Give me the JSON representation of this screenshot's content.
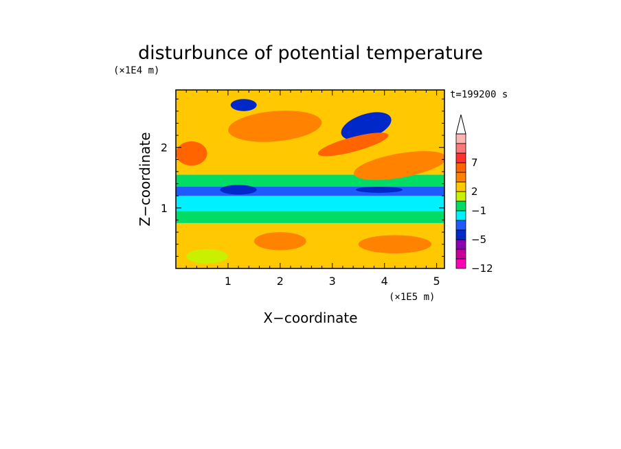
{
  "chart_data": {
    "type": "heatmap",
    "title": "disturbunce of potential temperature",
    "xlabel": "X−coordinate",
    "ylabel": "Z−coordinate",
    "x_unit": "(×1E5 m)",
    "y_unit": "(×1E4 m)",
    "time_label": "t=199200 s",
    "x_ticks": [
      "1",
      "2",
      "3",
      "4",
      "5"
    ],
    "y_ticks": [
      "1",
      "2"
    ],
    "xlim": [
      0,
      5.15
    ],
    "ylim": [
      0,
      2.95
    ],
    "colorbar": {
      "colors": [
        "#ff00b4",
        "#c8009a",
        "#8c00b4",
        "#0028c8",
        "#1e5aff",
        "#00f0ff",
        "#00dc64",
        "#c8f000",
        "#ffc800",
        "#ff8200",
        "#ff6400",
        "#ff3232",
        "#ff7878",
        "#ffb4b4"
      ],
      "labels": [
        "−12",
        "−5",
        "−1",
        "2",
        "7"
      ],
      "label_levels": [
        0,
        3,
        6,
        8,
        11
      ],
      "extend": "max"
    },
    "bands": [
      {
        "zmin": 0.0,
        "zmax": 0.55,
        "level": 8,
        "note": "yellow lower layer"
      },
      {
        "zmin": 0.55,
        "zmax": 0.75,
        "level": 8
      },
      {
        "zmin": 0.75,
        "zmax": 0.95,
        "level": 6
      },
      {
        "zmin": 0.95,
        "zmax": 1.2,
        "level": 5
      },
      {
        "zmin": 1.2,
        "zmax": 1.35,
        "level": 4
      },
      {
        "zmin": 1.35,
        "zmax": 1.55,
        "level": 6
      },
      {
        "zmin": 1.55,
        "zmax": 2.95,
        "level": 8
      }
    ],
    "features": [
      {
        "x": 3.65,
        "z": 2.35,
        "rx": 0.5,
        "rz": 0.2,
        "level": 3,
        "tilt": -18
      },
      {
        "x": 1.3,
        "z": 2.7,
        "rx": 0.25,
        "rz": 0.1,
        "level": 3,
        "tilt": 0
      },
      {
        "x": 1.9,
        "z": 2.35,
        "rx": 0.9,
        "rz": 0.25,
        "level": 9,
        "tilt": -5
      },
      {
        "x": 3.4,
        "z": 2.05,
        "rx": 0.7,
        "rz": 0.12,
        "level": 10,
        "tilt": -15
      },
      {
        "x": 4.3,
        "z": 1.7,
        "rx": 0.9,
        "rz": 0.2,
        "level": 9,
        "tilt": -10
      },
      {
        "x": 0.3,
        "z": 1.9,
        "rx": 0.3,
        "rz": 0.2,
        "level": 10,
        "tilt": 0
      },
      {
        "x": 1.2,
        "z": 1.3,
        "rx": 0.35,
        "rz": 0.08,
        "level": 3,
        "tilt": 0
      },
      {
        "x": 3.9,
        "z": 1.3,
        "rx": 0.45,
        "rz": 0.05,
        "level": 3,
        "tilt": 0
      },
      {
        "x": 2.0,
        "z": 0.45,
        "rx": 0.5,
        "rz": 0.15,
        "level": 9,
        "tilt": 0
      },
      {
        "x": 4.2,
        "z": 0.4,
        "rx": 0.7,
        "rz": 0.15,
        "level": 9,
        "tilt": 0
      },
      {
        "x": 0.6,
        "z": 0.2,
        "rx": 0.4,
        "rz": 0.12,
        "level": 7,
        "tilt": 0
      }
    ]
  }
}
